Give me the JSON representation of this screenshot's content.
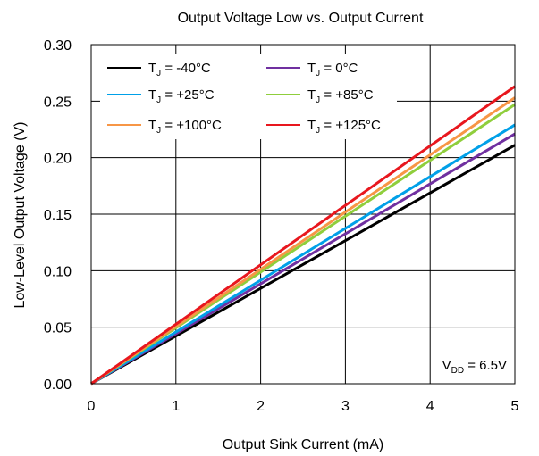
{
  "chart_data": {
    "type": "line",
    "title": "Output Voltage Low vs. Output Current",
    "xlabel": "Output Sink Current (mA)",
    "ylabel": "Low-Level Output Voltage (V)",
    "xlim": [
      0,
      5
    ],
    "ylim": [
      0,
      0.3
    ],
    "x_ticks": [
      "0",
      "1",
      "2",
      "3",
      "4",
      "5"
    ],
    "y_ticks": [
      "0.00",
      "0.05",
      "0.10",
      "0.15",
      "0.20",
      "0.25",
      "0.30"
    ],
    "grid": true,
    "legend_position": "top-left",
    "annotation": {
      "prefix": "V",
      "subscript": "DD",
      "suffix": " = 6.5V"
    },
    "x": [
      0,
      5
    ],
    "series": [
      {
        "name": "T_J = -40°C",
        "label_main": "T",
        "label_sub": "J",
        "label_rest": " = -40°C",
        "color": "#000000",
        "values": [
          0,
          0.211
        ]
      },
      {
        "name": "T_J = 0°C",
        "label_main": "T",
        "label_sub": "J",
        "label_rest": " = 0°C",
        "color": "#7030a0",
        "values": [
          0,
          0.221
        ]
      },
      {
        "name": "T_J = +25°C",
        "label_main": "T",
        "label_sub": "J",
        "label_rest": " = +25°C",
        "color": "#00a0e8",
        "values": [
          0,
          0.229
        ]
      },
      {
        "name": "T_J = +85°C",
        "label_main": "T",
        "label_sub": "J",
        "label_rest": " = +85°C",
        "color": "#8fce3c",
        "values": [
          0,
          0.247
        ]
      },
      {
        "name": "T_J = +100°C",
        "label_main": "T",
        "label_sub": "J",
        "label_rest": " = +100°C",
        "color": "#f79646",
        "values": [
          0,
          0.253
        ]
      },
      {
        "name": "T_J = +125°C",
        "label_main": "T",
        "label_sub": "J",
        "label_rest": " = +125°C",
        "color": "#e8171e",
        "values": [
          0,
          0.263
        ]
      }
    ]
  }
}
